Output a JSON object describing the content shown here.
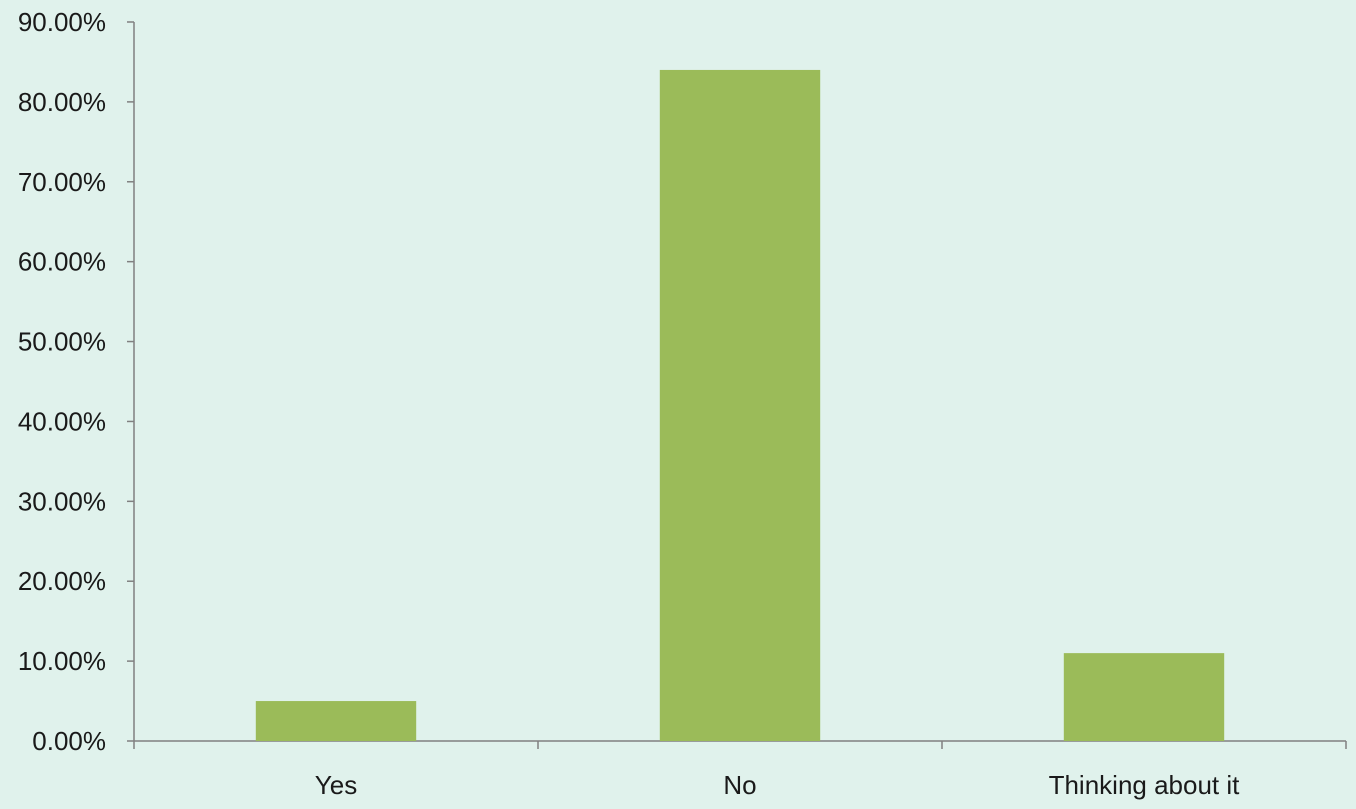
{
  "chart_data": {
    "type": "bar",
    "title": "",
    "xlabel": "",
    "ylabel": "",
    "categories": [
      "Yes",
      "No",
      "Thinking about it"
    ],
    "values": [
      0.05,
      0.84,
      0.11
    ],
    "ylim": [
      0,
      0.9
    ],
    "yticks": [
      0,
      0.1,
      0.2,
      0.3,
      0.4,
      0.5,
      0.6,
      0.7,
      0.8,
      0.9
    ],
    "ytick_labels": [
      "0.00%",
      "10.00%",
      "20.00%",
      "30.00%",
      "40.00%",
      "50.00%",
      "60.00%",
      "70.00%",
      "80.00%",
      "90.00%"
    ],
    "grid": false,
    "legend": "none",
    "colors": {
      "background": "#e0f2ec",
      "bar": "#9bbb59",
      "axis": "#808080",
      "text": "#1a1a1a"
    }
  }
}
